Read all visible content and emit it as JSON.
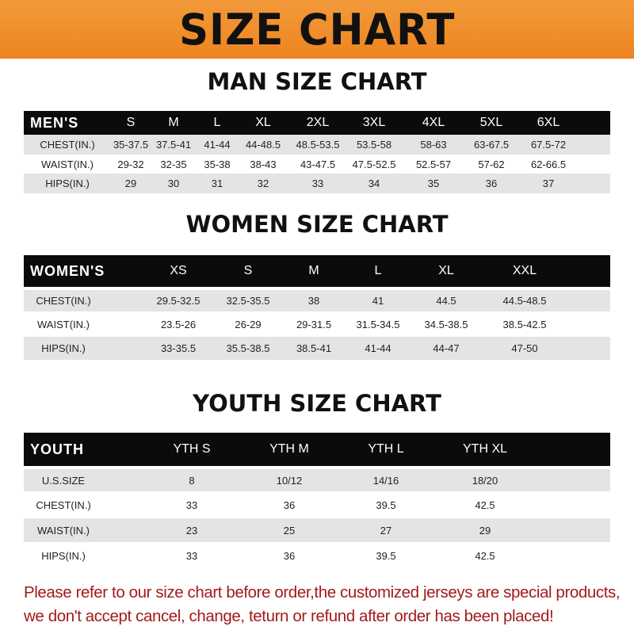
{
  "banner_title": "SIZE CHART",
  "men": {
    "title": "MAN SIZE CHART",
    "header": [
      "MEN'S",
      "S",
      "M",
      "L",
      "XL",
      "2XL",
      "3XL",
      "4XL",
      "5XL",
      "6XL"
    ],
    "rows": [
      [
        "CHEST(IN.)",
        "35-37.5",
        "37.5-41",
        "41-44",
        "44-48.5",
        "48.5-53.5",
        "53.5-58",
        "58-63",
        "63-67.5",
        "67.5-72"
      ],
      [
        "WAIST(IN.)",
        "29-32",
        "32-35",
        "35-38",
        "38-43",
        "43-47.5",
        "47.5-52.5",
        "52.5-57",
        "57-62",
        "62-66.5"
      ],
      [
        "HIPS(IN.)",
        "29",
        "30",
        "31",
        "32",
        "33",
        "34",
        "35",
        "36",
        "37"
      ]
    ]
  },
  "women": {
    "title": "WOMEN SIZE CHART",
    "header": [
      "WOMEN'S",
      "XS",
      "S",
      "M",
      "L",
      "XL",
      "XXL"
    ],
    "rows": [
      [
        "CHEST(IN.)",
        "29.5-32.5",
        "32.5-35.5",
        "38",
        "41",
        "44.5",
        "44.5-48.5"
      ],
      [
        "WAIST(IN.)",
        "23.5-26",
        "26-29",
        "29-31.5",
        "31.5-34.5",
        "34.5-38.5",
        "38.5-42.5"
      ],
      [
        "HIPS(IN.)",
        "33-35.5",
        "35.5-38.5",
        "38.5-41",
        "41-44",
        "44-47",
        "47-50"
      ]
    ]
  },
  "youth": {
    "title": "YOUTH SIZE CHART",
    "header": [
      "YOUTH",
      "YTH S",
      "YTH M",
      "YTH L",
      "YTH XL"
    ],
    "rows": [
      [
        "U.S.SIZE",
        "8",
        "10/12",
        "14/16",
        "18/20"
      ],
      [
        "CHEST(IN.)",
        "33",
        "36",
        "39.5",
        "42.5"
      ],
      [
        "WAIST(IN.)",
        "23",
        "25",
        "27",
        "29"
      ],
      [
        "HIPS(IN.)",
        "33",
        "36",
        "39.5",
        "42.5"
      ]
    ]
  },
  "note_line1": "Please refer to our size chart before order,the customized jerseys are special products,",
  "note_line2": "we don't accept cancel, change, teturn or refund after order has been placed!",
  "colors": {
    "banner": "#ee8420",
    "header_row": "#0c0a0a",
    "stripe": "#e4e4e4",
    "note": "#a31a1a"
  }
}
